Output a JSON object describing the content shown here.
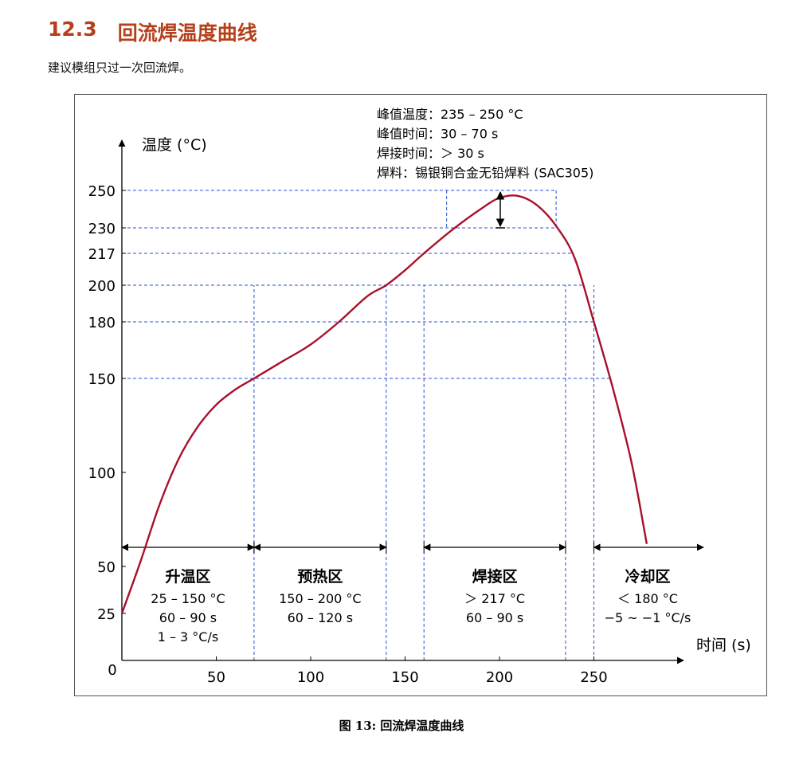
{
  "heading": {
    "number": "12.3",
    "title": "回流焊温度曲线"
  },
  "intro": "建议模组只过一次回流焊。",
  "caption": "图 13: 回流焊温度曲线",
  "colors": {
    "heading": "#b5401b",
    "curve": "#a8112a",
    "guide": "#2b50d8"
  },
  "chart_data": {
    "type": "line",
    "title": "",
    "xlabel": "时间 (s)",
    "ylabel": "温度 (°C)",
    "xticks": [
      "0",
      "50",
      "100",
      "150",
      "200",
      "250"
    ],
    "yticks": [
      "25",
      "50",
      "100",
      "150",
      "180",
      "200",
      "217",
      "230",
      "250"
    ],
    "series": [
      {
        "x": [
          0,
          10,
          20,
          30,
          40,
          50,
          60,
          70,
          85,
          100,
          115,
          130,
          140,
          150,
          160,
          175,
          190,
          200,
          210,
          220,
          230,
          240,
          250,
          260,
          270,
          278
        ],
        "y": [
          25,
          53,
          83,
          107,
          124,
          136,
          144,
          150,
          159,
          168,
          180,
          194,
          200,
          208,
          217,
          229,
          240,
          246,
          247,
          242,
          231,
          214,
          180,
          145,
          105,
          62
        ]
      }
    ],
    "guides": {
      "times": [
        70,
        140,
        160,
        235,
        250
      ],
      "temps": [
        150,
        180,
        200,
        217,
        230,
        250
      ]
    },
    "peak_note": [
      "峰值温度：235 – 250 °C",
      "峰值时间：30 – 70 s",
      "焊接时间：＞ 30 s",
      "焊料：锡银铜合金无铅焊料 (SAC305)"
    ],
    "zones": [
      {
        "name": "升温区",
        "lines": [
          "25 – 150 °C",
          "60 – 90 s",
          "1 – 3 °C/s"
        ]
      },
      {
        "name": "预热区",
        "lines": [
          "150 – 200 °C",
          "60 – 120 s"
        ]
      },
      {
        "name": "焊接区",
        "lines": [
          "＞ 217 °C",
          "60 – 90 s"
        ]
      },
      {
        "name": "冷却区",
        "lines": [
          "＜ 180 °C",
          "−5 ~ −1 °C/s"
        ]
      }
    ]
  }
}
